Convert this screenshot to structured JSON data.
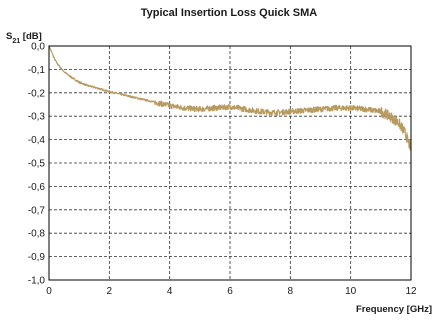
{
  "chart_data": {
    "type": "line",
    "title": "Typical Insertion Loss Quick SMA",
    "ylabel": {
      "main": "S",
      "sub": "21",
      "unit": " [dB]"
    },
    "xlabel": "Frequency [GHz]",
    "xlim": [
      0,
      12
    ],
    "ylim": [
      -1.0,
      0.0
    ],
    "x_ticks": [
      0,
      2,
      4,
      6,
      8,
      10,
      12
    ],
    "x_tick_labels": [
      "0",
      "2",
      "4",
      "6",
      "8",
      "10",
      "12"
    ],
    "y_ticks": [
      0,
      -0.1,
      -0.2,
      -0.3,
      -0.4,
      -0.5,
      -0.6,
      -0.7,
      -0.8,
      -0.9,
      -1.0
    ],
    "y_tick_labels": [
      "0,0",
      "-0,1",
      "-0,2",
      "-0,3",
      "-0,4",
      "-0,5",
      "-0,6",
      "-0,7",
      "-0,8",
      "-0,9",
      "-1,0"
    ],
    "grid": true,
    "series": [
      {
        "color": "#b89a5e",
        "x": [
          0,
          0.1,
          0.2,
          0.3,
          0.5,
          0.7,
          1.0,
          1.3,
          1.6,
          2.0,
          2.5,
          3.0,
          3.5,
          4.0,
          4.5,
          5.0,
          5.5,
          6.0,
          6.5,
          7.0,
          7.5,
          8.0,
          8.5,
          9.0,
          9.5,
          10.0,
          10.5,
          11.0,
          11.3,
          11.6,
          11.8,
          12.0
        ],
        "y": [
          0.0,
          -0.03,
          -0.06,
          -0.08,
          -0.11,
          -0.13,
          -0.155,
          -0.17,
          -0.18,
          -0.195,
          -0.21,
          -0.225,
          -0.24,
          -0.255,
          -0.265,
          -0.27,
          -0.265,
          -0.26,
          -0.27,
          -0.28,
          -0.285,
          -0.28,
          -0.275,
          -0.27,
          -0.265,
          -0.265,
          -0.27,
          -0.28,
          -0.3,
          -0.33,
          -0.37,
          -0.44
        ]
      }
    ]
  }
}
